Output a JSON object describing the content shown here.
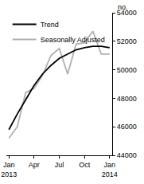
{
  "chart_data": {
    "type": "line",
    "y_label": "no.",
    "categories": [
      "Jan 2013",
      null,
      null,
      "Apr",
      null,
      null,
      "Jul",
      null,
      null,
      "Oct",
      null,
      null,
      "Jan 2014"
    ],
    "series": [
      {
        "name": "Trend",
        "color": "#000000",
        "values": [
          45800,
          46900,
          47900,
          48900,
          49700,
          50300,
          50800,
          51100,
          51400,
          51550,
          51650,
          51650,
          51550
        ]
      },
      {
        "name": "Seasonally Adjusted",
        "color": "#b0b0b0",
        "values": [
          45200,
          46000,
          48400,
          48700,
          49600,
          51000,
          51500,
          49700,
          51800,
          51900,
          52700,
          51100,
          51100
        ]
      }
    ],
    "ylim": [
      44000,
      54000
    ],
    "yticks": [
      44000,
      46000,
      48000,
      50000,
      52000,
      54000
    ],
    "grid": false,
    "legend": "top left"
  }
}
